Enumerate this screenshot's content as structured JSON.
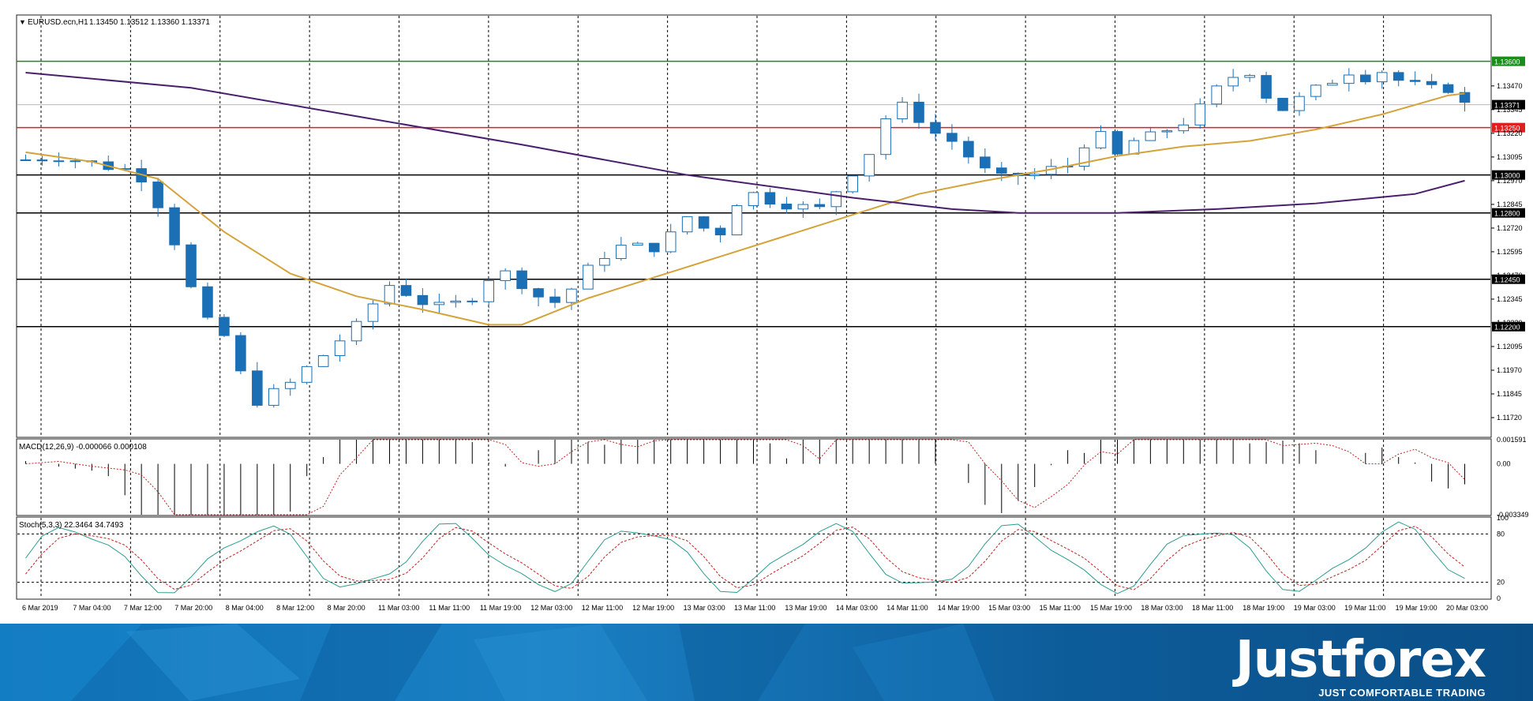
{
  "chart_header": {
    "symbol": "EURUSD.ecn,H1",
    "ohlc": "1.13450 1.13512 1.13360 1.13371"
  },
  "chart_data": [
    {
      "type": "candlestick",
      "title": "EURUSD.ecn,H1 1.13450 1.13512 1.13360 1.13371",
      "ylim": [
        1.1162,
        1.1384
      ],
      "y_ticks": [
        "1.13470",
        "1.13345",
        "1.13220",
        "1.13095",
        "1.12970",
        "1.12845",
        "1.12720",
        "1.12595",
        "1.12470",
        "1.12345",
        "1.12220",
        "1.12095",
        "1.11970",
        "1.11845",
        "1.11720"
      ],
      "x_ticks": [
        "6 Mar 2019",
        "7 Mar 04:00",
        "7 Mar 12:00",
        "7 Mar 20:00",
        "8 Mar 04:00",
        "8 Mar 12:00",
        "8 Mar 20:00",
        "11 Mar 03:00",
        "11 Mar 11:00",
        "11 Mar 19:00",
        "12 Mar 03:00",
        "12 Mar 11:00",
        "12 Mar 19:00",
        "13 Mar 03:00",
        "13 Mar 11:00",
        "13 Mar 19:00",
        "14 Mar 03:00",
        "14 Mar 11:00",
        "14 Mar 19:00",
        "15 Mar 03:00",
        "15 Mar 11:00",
        "15 Mar 19:00",
        "18 Mar 03:00",
        "18 Mar 11:00",
        "18 Mar 19:00",
        "19 Mar 03:00",
        "19 Mar 11:00",
        "19 Mar 19:00",
        "20 Mar 03:00"
      ],
      "horizontal_levels": [
        {
          "label": "1.13600",
          "value": 1.136,
          "color": "#1a8c1a"
        },
        {
          "label": "1.13250",
          "value": 1.1325,
          "color": "#e01e1e"
        },
        {
          "label": "1.13000",
          "value": 1.13,
          "color": "#000000"
        },
        {
          "label": "1.12800",
          "value": 1.128,
          "color": "#000000"
        },
        {
          "label": "1.12450",
          "value": 1.1245,
          "color": "#000000"
        },
        {
          "label": "1.12200",
          "value": 1.122,
          "color": "#000000"
        }
      ],
      "current_price": {
        "label": "1.13371",
        "value": 1.13371
      },
      "price_path": [
        [
          0,
          1.1308
        ],
        [
          2,
          1.131
        ],
        [
          4,
          1.1306
        ],
        [
          6,
          1.1303
        ],
        [
          7,
          1.1299
        ],
        [
          8,
          1.1285
        ],
        [
          9,
          1.1265
        ],
        [
          10,
          1.124
        ],
        [
          11,
          1.1222
        ],
        [
          12,
          1.1215
        ],
        [
          13,
          1.1195
        ],
        [
          14,
          1.1181
        ],
        [
          15,
          1.1185
        ],
        [
          16,
          1.119
        ],
        [
          17,
          1.1198
        ],
        [
          18,
          1.1205
        ],
        [
          19,
          1.1213
        ],
        [
          20,
          1.122
        ],
        [
          21,
          1.1232
        ],
        [
          22,
          1.1242
        ],
        [
          23,
          1.1238
        ],
        [
          24,
          1.1233
        ],
        [
          25,
          1.123
        ],
        [
          26,
          1.1232
        ],
        [
          27,
          1.1236
        ],
        [
          28,
          1.1246
        ],
        [
          29,
          1.1248
        ],
        [
          30,
          1.1243
        ],
        [
          31,
          1.1236
        ],
        [
          32,
          1.1233
        ],
        [
          33,
          1.124
        ],
        [
          34,
          1.125
        ],
        [
          35,
          1.1258
        ],
        [
          36,
          1.1262
        ],
        [
          37,
          1.1262
        ],
        [
          38,
          1.1262
        ],
        [
          39,
          1.1268
        ],
        [
          40,
          1.1278
        ],
        [
          41,
          1.1272
        ],
        [
          42,
          1.127
        ],
        [
          43,
          1.1286
        ],
        [
          44,
          1.129
        ],
        [
          45,
          1.1287
        ],
        [
          46,
          1.1285
        ],
        [
          47,
          1.1283
        ],
        [
          48,
          1.1282
        ],
        [
          49,
          1.1292
        ],
        [
          50,
          1.1302
        ],
        [
          51,
          1.1312
        ],
        [
          52,
          1.133
        ],
        [
          53,
          1.1336
        ],
        [
          54,
          1.133
        ],
        [
          55,
          1.1322
        ],
        [
          56,
          1.1318
        ],
        [
          57,
          1.131
        ],
        [
          58,
          1.1302
        ],
        [
          59,
          1.1298
        ],
        [
          60,
          1.13
        ],
        [
          61,
          1.13
        ],
        [
          62,
          1.1303
        ],
        [
          63,
          1.1305
        ],
        [
          64,
          1.1317
        ],
        [
          65,
          1.132
        ],
        [
          66,
          1.131
        ],
        [
          67,
          1.1318
        ],
        [
          68,
          1.132
        ],
        [
          69,
          1.1324
        ],
        [
          70,
          1.1328
        ],
        [
          71,
          1.1335
        ],
        [
          72,
          1.1345
        ],
        [
          73,
          1.1352
        ],
        [
          74,
          1.1355
        ],
        [
          75,
          1.1342
        ],
        [
          76,
          1.1335
        ],
        [
          77,
          1.134
        ],
        [
          78,
          1.1345
        ],
        [
          79,
          1.135
        ],
        [
          80,
          1.1355
        ],
        [
          81,
          1.1352
        ],
        [
          82,
          1.1355
        ],
        [
          83,
          1.135
        ],
        [
          84,
          1.1347
        ],
        [
          85,
          1.1345
        ],
        [
          86,
          1.1346
        ],
        [
          87,
          1.1337
        ]
      ],
      "series": [
        {
          "color": "#d4a33a",
          "values": [
            [
              0,
              1.1312
            ],
            [
              4,
              1.1307
            ],
            [
              8,
              1.1298
            ],
            [
              12,
              1.127
            ],
            [
              16,
              1.1248
            ],
            [
              20,
              1.1236
            ],
            [
              24,
              1.1229
            ],
            [
              26,
              1.1225
            ],
            [
              28,
              1.1221
            ],
            [
              30,
              1.1221
            ],
            [
              32,
              1.1228
            ],
            [
              34,
              1.1235
            ],
            [
              38,
              1.1246
            ],
            [
              42,
              1.1257
            ],
            [
              46,
              1.1268
            ],
            [
              50,
              1.1279
            ],
            [
              54,
              1.129
            ],
            [
              58,
              1.1297
            ],
            [
              62,
              1.1303
            ],
            [
              66,
              1.131
            ],
            [
              70,
              1.1315
            ],
            [
              74,
              1.1318
            ],
            [
              78,
              1.1324
            ],
            [
              82,
              1.1332
            ],
            [
              86,
              1.1342
            ],
            [
              87,
              1.1343
            ]
          ]
        },
        {
          "color": "#4a1f6e",
          "values": [
            [
              0,
              1.1354
            ],
            [
              10,
              1.1346
            ],
            [
              20,
              1.1331
            ],
            [
              30,
              1.1316
            ],
            [
              40,
              1.13
            ],
            [
              50,
              1.1288
            ],
            [
              56,
              1.1282
            ],
            [
              60,
              1.128
            ],
            [
              66,
              1.128
            ],
            [
              72,
              1.1282
            ],
            [
              78,
              1.1285
            ],
            [
              84,
              1.129
            ],
            [
              87,
              1.1297
            ]
          ]
        }
      ]
    },
    {
      "type": "histogram",
      "indicator": "MACD(12,26,9) -0.000066 0.000108",
      "y_ticks": [
        "0.001591",
        "0.00",
        "-0.003349"
      ],
      "ylim": [
        -0.00335,
        0.00159
      ],
      "signal_color": "#c02020"
    },
    {
      "type": "line",
      "indicator": "Stoch(5,3,3) 22.3464 34.7493",
      "y_ticks": [
        "100",
        "80",
        "20",
        "0"
      ],
      "ylim": [
        0,
        100
      ],
      "levels": [
        80,
        20
      ],
      "main_color": "#2a9d8f",
      "signal_color": "#c02020"
    }
  ],
  "branding": {
    "logo_text": "Justforex",
    "tagline": "JUST COMFORTABLE TRADING"
  }
}
